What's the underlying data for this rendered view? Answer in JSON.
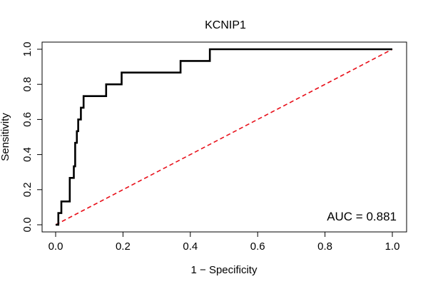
{
  "chart_data": {
    "type": "line",
    "title": "KCNIP1",
    "xlabel": "1 − Specificity",
    "ylabel": "Sensitivity",
    "xlim": [
      0,
      1
    ],
    "ylim": [
      0,
      1
    ],
    "x_ticks": [
      "0.0",
      "0.2",
      "0.4",
      "0.6",
      "0.8",
      "1.0"
    ],
    "y_ticks": [
      "0.0",
      "0.2",
      "0.4",
      "0.6",
      "0.8",
      "1.0"
    ],
    "grid": false,
    "annotation": "AUC = 0.881",
    "colors": {
      "roc_curve": "#000000",
      "reference_line": "#e8101a",
      "frame": "#000000"
    },
    "series": [
      {
        "style": "solid",
        "color": "#000000",
        "points": [
          [
            0.0,
            0.0
          ],
          [
            0.008,
            0.0
          ],
          [
            0.008,
            0.067
          ],
          [
            0.017,
            0.067
          ],
          [
            0.017,
            0.133
          ],
          [
            0.042,
            0.133
          ],
          [
            0.042,
            0.267
          ],
          [
            0.054,
            0.267
          ],
          [
            0.054,
            0.333
          ],
          [
            0.058,
            0.333
          ],
          [
            0.058,
            0.467
          ],
          [
            0.063,
            0.467
          ],
          [
            0.063,
            0.533
          ],
          [
            0.067,
            0.533
          ],
          [
            0.067,
            0.6
          ],
          [
            0.075,
            0.6
          ],
          [
            0.075,
            0.667
          ],
          [
            0.083,
            0.667
          ],
          [
            0.083,
            0.733
          ],
          [
            0.15,
            0.733
          ],
          [
            0.15,
            0.8
          ],
          [
            0.196,
            0.8
          ],
          [
            0.196,
            0.867
          ],
          [
            0.371,
            0.867
          ],
          [
            0.371,
            0.933
          ],
          [
            0.458,
            0.933
          ],
          [
            0.458,
            1.0
          ],
          [
            1.0,
            1.0
          ]
        ]
      },
      {
        "style": "dashed",
        "color": "#e8101a",
        "points": [
          [
            0,
            0
          ],
          [
            1,
            1
          ]
        ]
      }
    ]
  }
}
